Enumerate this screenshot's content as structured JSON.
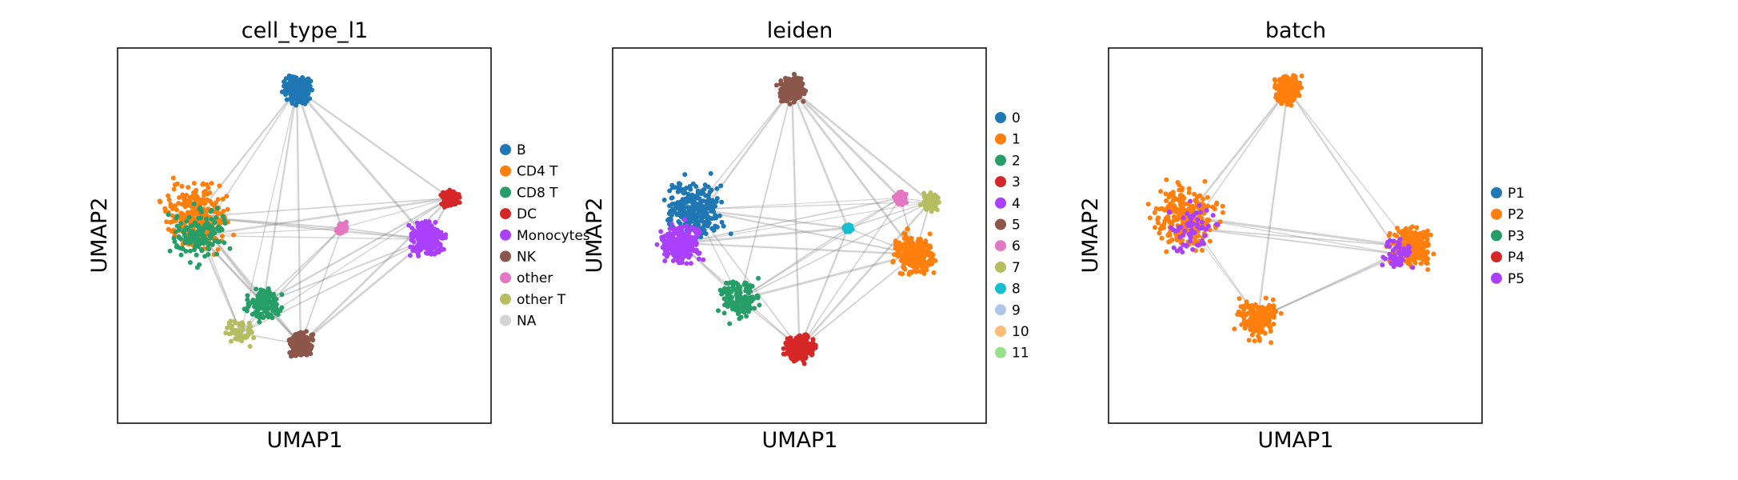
{
  "chart_data": [
    {
      "type": "scatter",
      "title": "cell_type_l1",
      "xlabel": "UMAP1",
      "ylabel": "UMAP2",
      "ticks": "none",
      "grid": false,
      "legend": {
        "placement": "right",
        "entries": [
          {
            "label": "B",
            "color": "#1f77b4"
          },
          {
            "label": "CD4 T",
            "color": "#ff7f0e"
          },
          {
            "label": "CD8 T",
            "color": "#279e68"
          },
          {
            "label": "DC",
            "color": "#d62728"
          },
          {
            "label": "Monocytes",
            "color": "#aa40fc"
          },
          {
            "label": "NK",
            "color": "#8c564b"
          },
          {
            "label": "other",
            "color": "#e377c2"
          },
          {
            "label": "other T",
            "color": "#b5bd61"
          },
          {
            "label": "NA",
            "color": "#d3d3d3"
          }
        ]
      },
      "clusters": [
        {
          "label": "B",
          "x": 0.48,
          "y": 0.89,
          "spread": 0.045,
          "density": "high"
        },
        {
          "label": "CD4 T",
          "x": 0.21,
          "y": 0.55,
          "spread": 0.12,
          "density": "high"
        },
        {
          "label": "CD8 T",
          "x": 0.22,
          "y": 0.5,
          "spread": 0.1,
          "density": "medium"
        },
        {
          "label": "CD8 T",
          "x": 0.39,
          "y": 0.32,
          "spread": 0.06,
          "density": "medium"
        },
        {
          "label": "Monocytes",
          "x": 0.83,
          "y": 0.49,
          "spread": 0.06,
          "density": "high"
        },
        {
          "label": "DC",
          "x": 0.89,
          "y": 0.6,
          "spread": 0.03,
          "density": "medium"
        },
        {
          "label": "NK",
          "x": 0.49,
          "y": 0.21,
          "spread": 0.04,
          "density": "high"
        },
        {
          "label": "other T",
          "x": 0.33,
          "y": 0.24,
          "spread": 0.05,
          "density": "low"
        },
        {
          "label": "other",
          "x": 0.6,
          "y": 0.52,
          "spread": 0.02,
          "density": "low"
        }
      ]
    },
    {
      "type": "scatter",
      "title": "leiden",
      "xlabel": "UMAP1",
      "ylabel": "UMAP2",
      "ticks": "none",
      "grid": false,
      "legend": {
        "placement": "right",
        "entries": [
          {
            "label": "0",
            "color": "#1f77b4"
          },
          {
            "label": "1",
            "color": "#ff7f0e"
          },
          {
            "label": "2",
            "color": "#279e68"
          },
          {
            "label": "3",
            "color": "#d62728"
          },
          {
            "label": "4",
            "color": "#aa40fc"
          },
          {
            "label": "5",
            "color": "#8c564b"
          },
          {
            "label": "6",
            "color": "#e377c2"
          },
          {
            "label": "7",
            "color": "#b5bd61"
          },
          {
            "label": "8",
            "color": "#17becf"
          },
          {
            "label": "9",
            "color": "#aec7e8"
          },
          {
            "label": "10",
            "color": "#ffbb78"
          },
          {
            "label": "11",
            "color": "#98df8a"
          }
        ]
      },
      "clusters": [
        {
          "label": "0",
          "x": 0.22,
          "y": 0.57,
          "spread": 0.11,
          "density": "high"
        },
        {
          "label": "4",
          "x": 0.18,
          "y": 0.48,
          "spread": 0.07,
          "density": "high"
        },
        {
          "label": "2",
          "x": 0.34,
          "y": 0.33,
          "spread": 0.07,
          "density": "medium"
        },
        {
          "label": "3",
          "x": 0.5,
          "y": 0.2,
          "spread": 0.05,
          "density": "high"
        },
        {
          "label": "1",
          "x": 0.81,
          "y": 0.45,
          "spread": 0.07,
          "density": "high"
        },
        {
          "label": "5",
          "x": 0.48,
          "y": 0.89,
          "spread": 0.045,
          "density": "high"
        },
        {
          "label": "6",
          "x": 0.77,
          "y": 0.6,
          "spread": 0.02,
          "density": "medium"
        },
        {
          "label": "7",
          "x": 0.85,
          "y": 0.59,
          "spread": 0.03,
          "density": "medium"
        },
        {
          "label": "8",
          "x": 0.63,
          "y": 0.52,
          "spread": 0.015,
          "density": "low"
        }
      ]
    },
    {
      "type": "scatter",
      "title": "batch",
      "xlabel": "UMAP1",
      "ylabel": "UMAP2",
      "ticks": "none",
      "grid": false,
      "legend": {
        "placement": "right",
        "entries": [
          {
            "label": "P1",
            "color": "#1f77b4"
          },
          {
            "label": "P2",
            "color": "#ff7f0e"
          },
          {
            "label": "P3",
            "color": "#279e68"
          },
          {
            "label": "P4",
            "color": "#d62728"
          },
          {
            "label": "P5",
            "color": "#aa40fc"
          }
        ]
      },
      "clusters": [
        {
          "label": "P2",
          "x": 0.21,
          "y": 0.55,
          "spread": 0.12,
          "density": "high"
        },
        {
          "label": "P2",
          "x": 0.81,
          "y": 0.47,
          "spread": 0.07,
          "density": "high"
        },
        {
          "label": "P2",
          "x": 0.48,
          "y": 0.89,
          "spread": 0.045,
          "density": "high"
        },
        {
          "label": "P2",
          "x": 0.4,
          "y": 0.28,
          "spread": 0.08,
          "density": "medium"
        },
        {
          "label": "P5",
          "x": 0.22,
          "y": 0.52,
          "spread": 0.1,
          "density": "low"
        },
        {
          "label": "P5",
          "x": 0.78,
          "y": 0.45,
          "spread": 0.06,
          "density": "low"
        }
      ]
    }
  ]
}
